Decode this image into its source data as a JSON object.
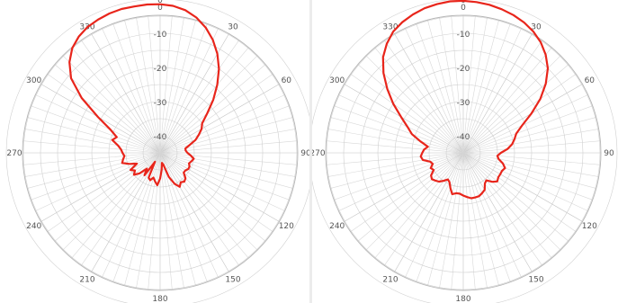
{
  "chart_data": [
    {
      "type": "polar-line",
      "angle_ticks": [
        "0",
        "30",
        "60",
        "90",
        "120",
        "150",
        "180",
        "210",
        "240",
        "270",
        "300",
        "330"
      ],
      "radial_ticks": [
        "0",
        "-10",
        "-20",
        "-30",
        "-40"
      ],
      "rlim": [
        -45,
        0
      ],
      "grid": true,
      "line_color": "#e8251b",
      "series": [
        {
          "theta": [
            0,
            5,
            10,
            15,
            20,
            25,
            30,
            35,
            40,
            45,
            50,
            55,
            60,
            65,
            70,
            75,
            80,
            85,
            90,
            95,
            100,
            105,
            110,
            115,
            120,
            125,
            130,
            135,
            140,
            145,
            150,
            155,
            160,
            165,
            170,
            175,
            180,
            185,
            190,
            195,
            200,
            205,
            210,
            215,
            220,
            225,
            230,
            235,
            240,
            245,
            250,
            255,
            260,
            265,
            270,
            275,
            280,
            285,
            290,
            295,
            300,
            305,
            310,
            315,
            320,
            325,
            330,
            335,
            340,
            345,
            350,
            355
          ],
          "r": [
            -1.5,
            -1.8,
            -2.6,
            -4,
            -6,
            -8.5,
            -11.5,
            -15,
            -19,
            -23,
            -27,
            -30,
            -31,
            -32.5,
            -34,
            -36,
            -37.5,
            -37.5,
            -37,
            -36,
            -35,
            -35.5,
            -36,
            -35.5,
            -35.5,
            -36,
            -36,
            -34.5,
            -34,
            -34.5,
            -33.5,
            -35,
            -37.5,
            -41.5,
            -42,
            -40,
            -37.5,
            -35.5,
            -36.5,
            -37.5,
            -36.5,
            -37,
            -42,
            -37,
            -39,
            -36.5,
            -35,
            -36,
            -35,
            -37.5,
            -35.5,
            -33.5,
            -34,
            -34.5,
            -34,
            -33.5,
            -32.5,
            -30.5,
            -31.5,
            -29,
            -24,
            -17,
            -11,
            -7.5,
            -5,
            -3.5,
            -2.5,
            -2,
            -1.6,
            -1.4,
            -1.5,
            -1.4
          ]
        },
        {
          "theta": [
            0,
            5,
            10,
            15,
            20,
            25,
            30,
            35,
            40,
            45,
            50,
            55,
            60,
            65,
            70,
            75,
            80,
            85,
            90,
            95,
            100,
            105,
            110,
            115,
            120,
            125,
            130,
            135,
            140,
            145,
            150,
            155,
            160,
            165,
            170,
            175,
            180,
            185,
            190,
            195,
            200,
            205,
            210,
            215,
            220,
            225,
            230,
            235,
            240,
            245,
            250,
            255,
            260,
            265,
            270,
            275,
            280,
            285,
            290,
            295,
            300,
            305,
            310,
            315,
            320,
            325,
            330,
            335,
            340,
            345,
            350,
            355
          ],
          "r": [
            -0.5,
            -0.7,
            -1,
            -1.5,
            -2.1,
            -2.9,
            -4,
            -5.5,
            -7.5,
            -10,
            -13.5,
            -17.5,
            -22,
            -26,
            -28.5,
            -29.5,
            -30.5,
            -32,
            -34,
            -35,
            -34.5,
            -33,
            -32,
            -32.5,
            -32.5,
            -32.5,
            -32,
            -33,
            -34.5,
            -34,
            -32.5,
            -32,
            -31.5,
            -31.5,
            -31.5,
            -32,
            -32.5,
            -33,
            -33,
            -32.5,
            -34,
            -35.5,
            -36,
            -35,
            -34,
            -33.5,
            -33,
            -33.5,
            -35,
            -34.5,
            -35.5,
            -35,
            -33,
            -32.5,
            -33,
            -33.5,
            -34.5,
            -32,
            -29,
            -27,
            -24,
            -20,
            -16,
            -12,
            -8.5,
            -6,
            -4,
            -2.8,
            -1.9,
            -1.2,
            -0.8,
            -0.5
          ]
        }
      ]
    }
  ]
}
